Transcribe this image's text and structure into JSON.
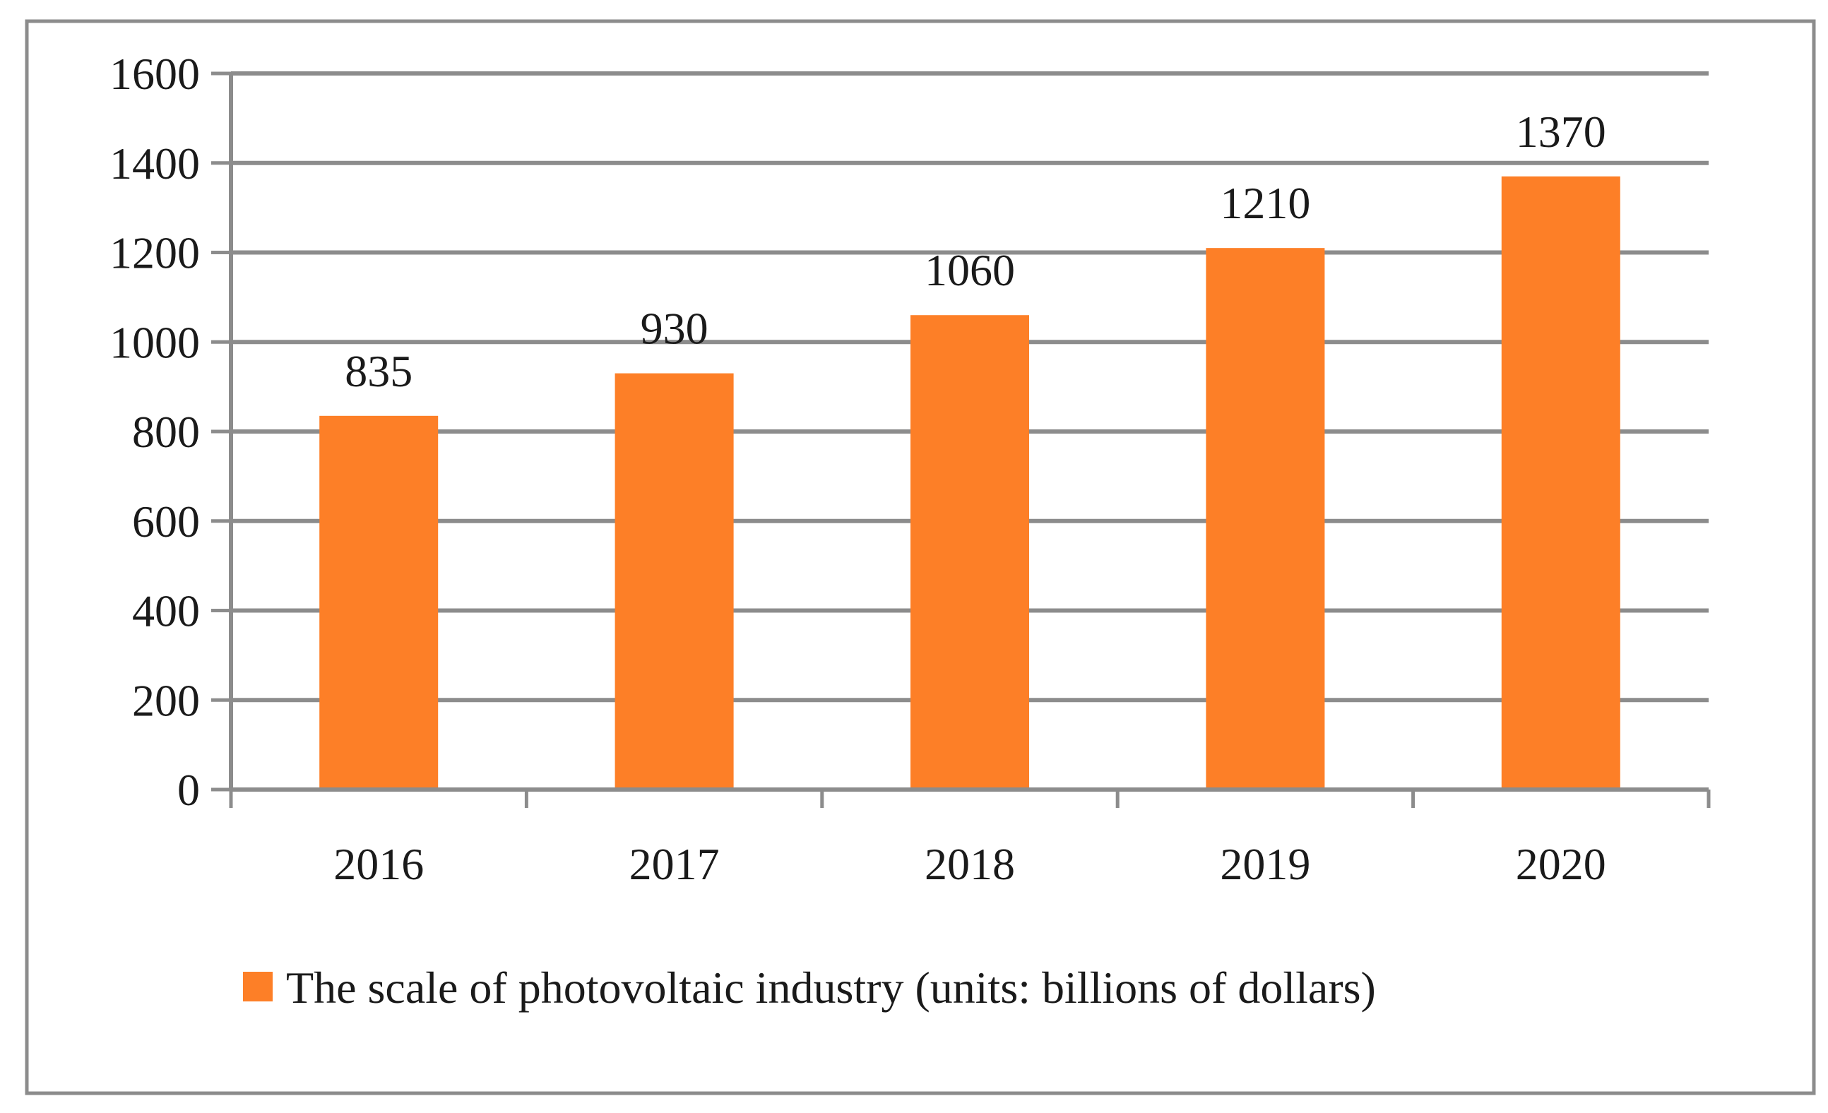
{
  "chart_data": {
    "type": "bar",
    "categories": [
      "2016",
      "2017",
      "2018",
      "2019",
      "2020"
    ],
    "series": [
      {
        "name": "The scale of photovoltaic industry (units: billions of dollars)",
        "values": [
          835,
          930,
          1060,
          1210,
          1370
        ],
        "color": "#FD7F27"
      }
    ],
    "data_labels": [
      "835",
      "930",
      "1060",
      "1210",
      "1370"
    ],
    "y_ticks": [
      "0",
      "200",
      "400",
      "600",
      "800",
      "1000",
      "1200",
      "1400",
      "1600"
    ],
    "ylim": [
      0,
      1600
    ],
    "grid": true,
    "legend": "bottom",
    "title": "",
    "xlabel": "",
    "ylabel": ""
  },
  "colors": {
    "gridline": "#8C8C8C",
    "frame_border": "#8C8C8C",
    "text": "#1a1a1a"
  }
}
